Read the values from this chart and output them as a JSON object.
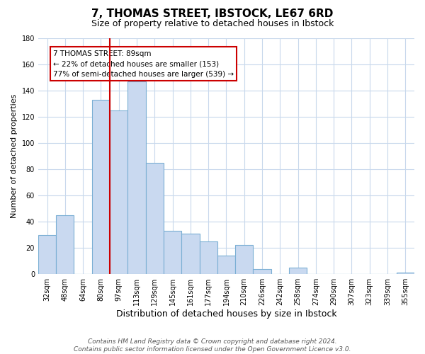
{
  "title": "7, THOMAS STREET, IBSTOCK, LE67 6RD",
  "subtitle": "Size of property relative to detached houses in Ibstock",
  "xlabel": "Distribution of detached houses by size in Ibstock",
  "ylabel": "Number of detached properties",
  "bar_labels": [
    "32sqm",
    "48sqm",
    "64sqm",
    "80sqm",
    "97sqm",
    "113sqm",
    "129sqm",
    "145sqm",
    "161sqm",
    "177sqm",
    "194sqm",
    "210sqm",
    "226sqm",
    "242sqm",
    "258sqm",
    "274sqm",
    "290sqm",
    "307sqm",
    "323sqm",
    "339sqm",
    "355sqm"
  ],
  "bar_values": [
    30,
    45,
    0,
    133,
    125,
    147,
    85,
    33,
    31,
    25,
    14,
    22,
    4,
    0,
    5,
    0,
    0,
    0,
    0,
    0,
    1
  ],
  "bar_color": "#c9d9f0",
  "bar_edge_color": "#7bafd4",
  "vline_x": 4.0,
  "vline_color": "#cc0000",
  "ylim": [
    0,
    180
  ],
  "yticks": [
    0,
    20,
    40,
    60,
    80,
    100,
    120,
    140,
    160,
    180
  ],
  "annotation_title": "7 THOMAS STREET: 89sqm",
  "annotation_line1": "← 22% of detached houses are smaller (153)",
  "annotation_line2": "77% of semi-detached houses are larger (539) →",
  "annotation_box_color": "#ffffff",
  "annotation_box_edge": "#cc0000",
  "footer_line1": "Contains HM Land Registry data © Crown copyright and database right 2024.",
  "footer_line2": "Contains public sector information licensed under the Open Government Licence v3.0.",
  "bg_color": "#ffffff",
  "grid_color": "#c8d8ec",
  "title_fontsize": 11,
  "subtitle_fontsize": 9,
  "xlabel_fontsize": 9,
  "ylabel_fontsize": 8,
  "tick_fontsize": 7,
  "footer_fontsize": 6.5,
  "annotation_fontsize": 7.5
}
